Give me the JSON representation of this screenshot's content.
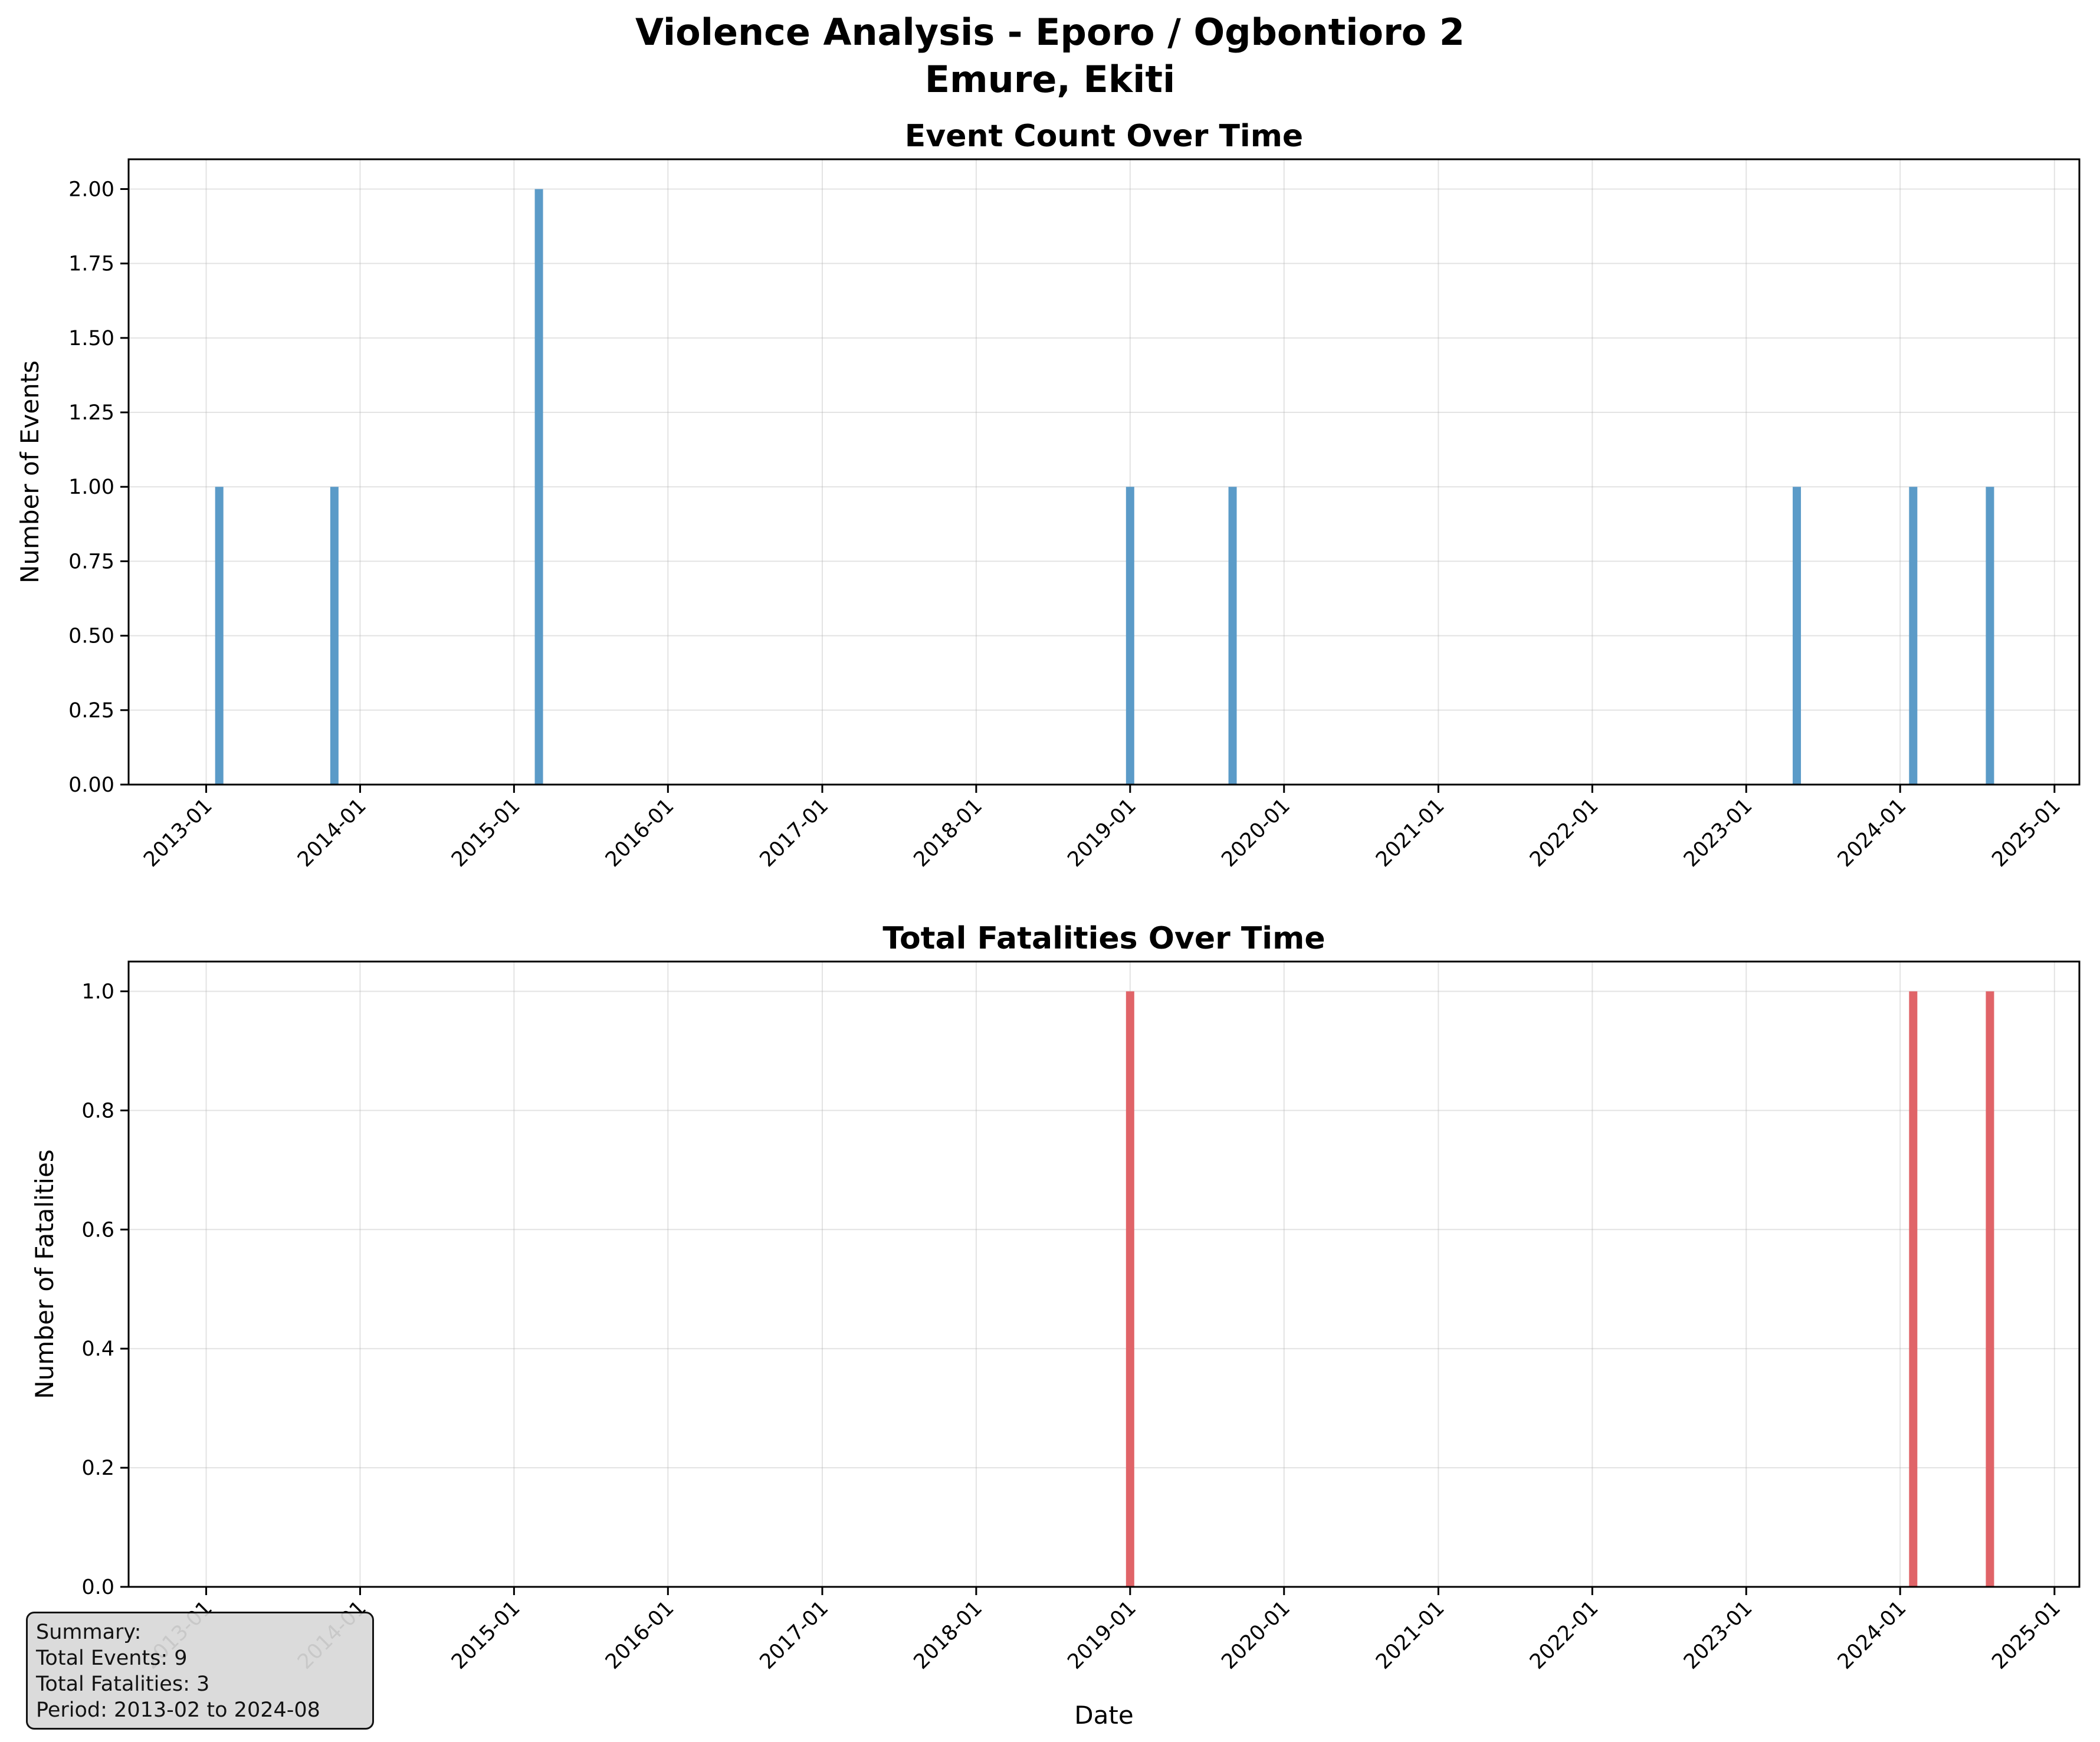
{
  "figure": {
    "title_line1": "Violence Analysis - Eporo / Ogbontioro 2",
    "title_line2": "Emure, Ekiti"
  },
  "summary": {
    "heading": "Summary:",
    "total_events": "Total Events: 9",
    "total_fatalities": "Total Fatalities: 3",
    "period": "Period: 2013-02 to 2024-08"
  },
  "chart_data": [
    {
      "type": "bar",
      "title": "Event Count Over Time",
      "xlabel": "",
      "ylabel": "Number of Events",
      "x_axis_type": "date",
      "xlim": [
        "2012-07-01",
        "2025-03-01"
      ],
      "ylim": [
        0,
        2.1
      ],
      "yticks": [
        0,
        0.25,
        0.5,
        0.75,
        1.0,
        1.25,
        1.5,
        1.75,
        2.0
      ],
      "ytick_labels": [
        "0.00",
        "0.25",
        "0.50",
        "0.75",
        "1.00",
        "1.25",
        "1.50",
        "1.75",
        "2.00"
      ],
      "xticks": [
        "2013-01-01",
        "2014-01-01",
        "2015-01-01",
        "2016-01-01",
        "2017-01-01",
        "2018-01-01",
        "2019-01-01",
        "2020-01-01",
        "2021-01-01",
        "2022-01-01",
        "2023-01-01",
        "2024-01-01",
        "2025-01-01"
      ],
      "xtick_labels": [
        "2013-01",
        "2014-01",
        "2015-01",
        "2016-01",
        "2017-01",
        "2018-01",
        "2019-01",
        "2020-01",
        "2021-01",
        "2022-01",
        "2023-01",
        "2024-01",
        "2025-01"
      ],
      "grid": true,
      "color": "#5b9bc8",
      "x": [
        "2013-02",
        "2013-11",
        "2015-03",
        "2019-01",
        "2019-09",
        "2023-05",
        "2024-02",
        "2024-08"
      ],
      "values": [
        1,
        1,
        2,
        1,
        1,
        1,
        1,
        1
      ]
    },
    {
      "type": "bar",
      "title": "Total Fatalities Over Time",
      "xlabel": "Date",
      "ylabel": "Number of Fatalities",
      "x_axis_type": "date",
      "xlim": [
        "2012-07-01",
        "2025-03-01"
      ],
      "ylim": [
        0,
        1.05
      ],
      "yticks": [
        0,
        0.2,
        0.4,
        0.6,
        0.8,
        1.0
      ],
      "ytick_labels": [
        "0.0",
        "0.2",
        "0.4",
        "0.6",
        "0.8",
        "1.0"
      ],
      "xticks": [
        "2013-01-01",
        "2014-01-01",
        "2015-01-01",
        "2016-01-01",
        "2017-01-01",
        "2018-01-01",
        "2019-01-01",
        "2020-01-01",
        "2021-01-01",
        "2022-01-01",
        "2023-01-01",
        "2024-01-01",
        "2025-01-01"
      ],
      "xtick_labels": [
        "2013-01",
        "2014-01",
        "2015-01",
        "2016-01",
        "2017-01",
        "2018-01",
        "2019-01",
        "2020-01",
        "2021-01",
        "2022-01",
        "2023-01",
        "2024-01",
        "2025-01"
      ],
      "grid": true,
      "color": "#e06468",
      "x": [
        "2013-02",
        "2013-11",
        "2015-03",
        "2019-01",
        "2019-09",
        "2023-05",
        "2024-02",
        "2024-08"
      ],
      "values": [
        0,
        0,
        0,
        1,
        0,
        0,
        1,
        1
      ]
    }
  ]
}
